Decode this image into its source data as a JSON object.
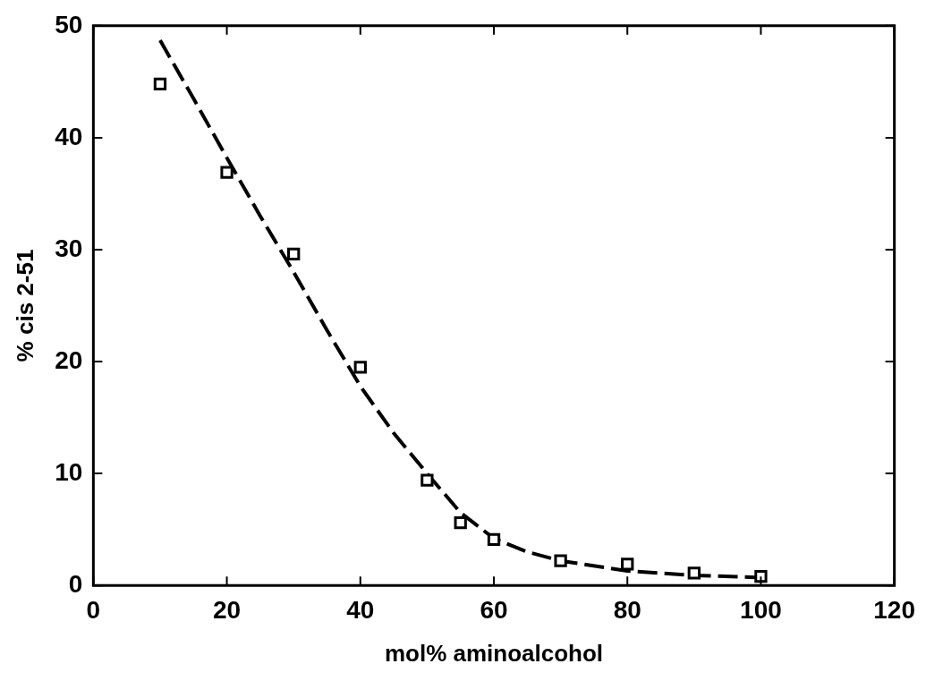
{
  "chart_data": {
    "type": "scatter",
    "xlabel": "mol% aminoalcohol",
    "ylabel": "% cis 2-51",
    "xlim": [
      0,
      120
    ],
    "xticks": [
      0,
      20,
      40,
      60,
      80,
      100,
      120
    ],
    "ylim": [
      0,
      50
    ],
    "yticks": [
      0,
      10,
      20,
      30,
      40,
      50
    ],
    "grid": false,
    "legend": false,
    "marker": "square",
    "series": [
      {
        "type": "scatter",
        "color": "#000000",
        "x": [
          10,
          20,
          30,
          40,
          50,
          55,
          60,
          70,
          80,
          90,
          100
        ],
        "values": [
          44.8,
          36.9,
          29.6,
          19.5,
          9.4,
          5.6,
          4.1,
          2.2,
          1.9,
          1.1,
          0.8
        ]
      },
      {
        "type": "line",
        "color": "#000000",
        "line_style": "dashed",
        "marker": "none",
        "x": [
          10,
          15,
          20,
          25,
          30,
          35,
          40,
          45,
          50,
          55,
          60,
          65,
          70,
          80,
          90,
          100
        ],
        "values": [
          48.7,
          43.5,
          38.2,
          33,
          28,
          22.8,
          17.8,
          13.6,
          10,
          6.5,
          4.2,
          3,
          2.2,
          1.3,
          0.9,
          0.7
        ]
      }
    ]
  }
}
